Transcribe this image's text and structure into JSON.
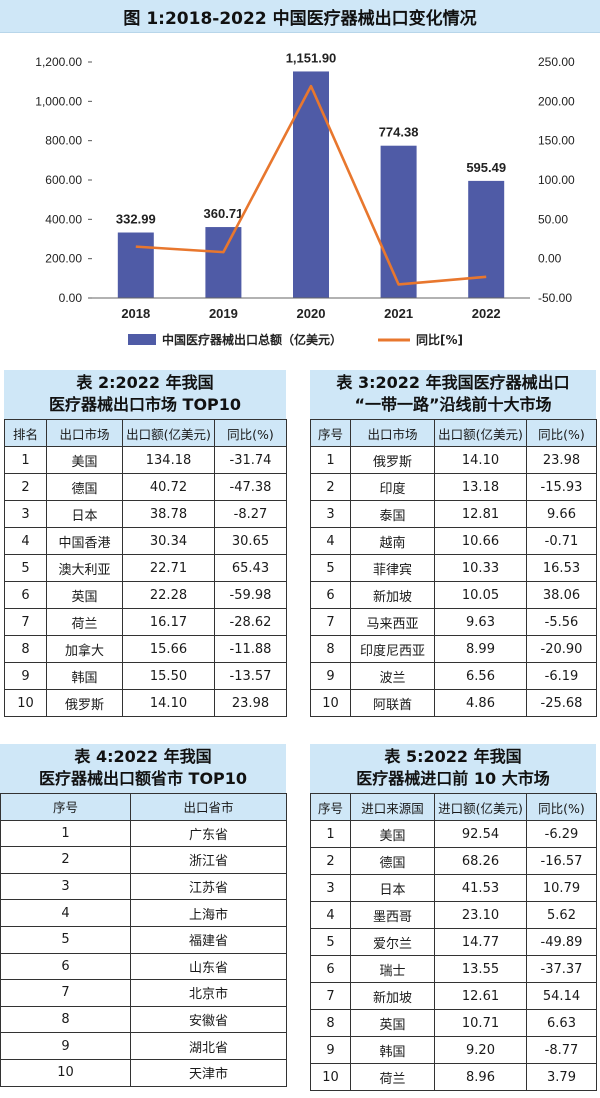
{
  "figure1": {
    "title": "图 1:2018-2022 中国医疗器械出口变化情况",
    "chart_data": {
      "type": "bar",
      "categories": [
        "2018",
        "2019",
        "2020",
        "2021",
        "2022"
      ],
      "series": [
        {
          "name": "中国医疗器械出口总额（亿美元）",
          "type": "bar",
          "axis": "left",
          "values": [
            332.99,
            360.71,
            1151.9,
            774.38,
            595.49
          ],
          "labels": [
            "332.99",
            "360.71",
            "1,151.90",
            "774.38",
            "595.49"
          ],
          "color": "#4f5ba6"
        },
        {
          "name": "同比[%]",
          "type": "line",
          "axis": "right",
          "values": [
            15.3,
            8.3,
            219.3,
            -32.8,
            -23.1
          ],
          "color": "#e8772e"
        }
      ],
      "left_axis": {
        "min": 0,
        "max": 1200,
        "ticks": [
          "0.00",
          "200.00",
          "400.00",
          "600.00",
          "800.00",
          "1,000.00",
          "1,200.00"
        ]
      },
      "right_axis": {
        "min": -50,
        "max": 250,
        "ticks": [
          "-50.00",
          "0.00",
          "50.00",
          "100.00",
          "150.00",
          "200.00",
          "250.00"
        ]
      },
      "legend": "bottom",
      "grid": false
    }
  },
  "table2": {
    "title_lines": [
      "表 2:2022 年我国",
      "医疗器械出口市场 TOP10"
    ],
    "headers": [
      "排名",
      "出口市场",
      "出口额(亿美元)",
      "同比(%)"
    ],
    "rows": [
      [
        "1",
        "美国",
        "134.18",
        "-31.74"
      ],
      [
        "2",
        "德国",
        "40.72",
        "-47.38"
      ],
      [
        "3",
        "日本",
        "38.78",
        "-8.27"
      ],
      [
        "4",
        "中国香港",
        "30.34",
        "30.65"
      ],
      [
        "5",
        "澳大利亚",
        "22.71",
        "65.43"
      ],
      [
        "6",
        "英国",
        "22.28",
        "-59.98"
      ],
      [
        "7",
        "荷兰",
        "16.17",
        "-28.62"
      ],
      [
        "8",
        "加拿大",
        "15.66",
        "-11.88"
      ],
      [
        "9",
        "韩国",
        "15.50",
        "-13.57"
      ],
      [
        "10",
        "俄罗斯",
        "14.10",
        "23.98"
      ]
    ]
  },
  "table3": {
    "title_lines": [
      "表 3:2022 年我国医疗器械出口",
      "“一带一路”沿线前十大市场"
    ],
    "headers": [
      "序号",
      "出口市场",
      "出口额(亿美元)",
      "同比(%)"
    ],
    "rows": [
      [
        "1",
        "俄罗斯",
        "14.10",
        "23.98"
      ],
      [
        "2",
        "印度",
        "13.18",
        "-15.93"
      ],
      [
        "3",
        "泰国",
        "12.81",
        "9.66"
      ],
      [
        "4",
        "越南",
        "10.66",
        "-0.71"
      ],
      [
        "5",
        "菲律宾",
        "10.33",
        "16.53"
      ],
      [
        "6",
        "新加坡",
        "10.05",
        "38.06"
      ],
      [
        "7",
        "马来西亚",
        "9.63",
        "-5.56"
      ],
      [
        "8",
        "印度尼西亚",
        "8.99",
        "-20.90"
      ],
      [
        "9",
        "波兰",
        "6.56",
        "-6.19"
      ],
      [
        "10",
        "阿联酋",
        "4.86",
        "-25.68"
      ]
    ]
  },
  "table4": {
    "title_lines": [
      "表 4:2022 年我国",
      "医疗器械出口额省市 TOP10"
    ],
    "headers": [
      "序号",
      "出口省市"
    ],
    "rows": [
      [
        "1",
        "广东省"
      ],
      [
        "2",
        "浙江省"
      ],
      [
        "3",
        "江苏省"
      ],
      [
        "4",
        "上海市"
      ],
      [
        "5",
        "福建省"
      ],
      [
        "6",
        "山东省"
      ],
      [
        "7",
        "北京市"
      ],
      [
        "8",
        "安徽省"
      ],
      [
        "9",
        "湖北省"
      ],
      [
        "10",
        "天津市"
      ]
    ]
  },
  "table5": {
    "title_lines": [
      "表 5:2022 年我国",
      "医疗器械进口前 10 大市场"
    ],
    "headers": [
      "序号",
      "进口来源国",
      "进口额(亿美元)",
      "同比(%)"
    ],
    "rows": [
      [
        "1",
        "美国",
        "92.54",
        "-6.29"
      ],
      [
        "2",
        "德国",
        "68.26",
        "-16.57"
      ],
      [
        "3",
        "日本",
        "41.53",
        "10.79"
      ],
      [
        "4",
        "墨西哥",
        "23.10",
        "5.62"
      ],
      [
        "5",
        "爱尔兰",
        "14.77",
        "-49.89"
      ],
      [
        "6",
        "瑞士",
        "13.55",
        "-37.37"
      ],
      [
        "7",
        "新加坡",
        "12.61",
        "54.14"
      ],
      [
        "8",
        "英国",
        "10.71",
        "6.63"
      ],
      [
        "9",
        "韩国",
        "9.20",
        "-8.77"
      ],
      [
        "10",
        "荷兰",
        "8.96",
        "3.79"
      ]
    ]
  }
}
